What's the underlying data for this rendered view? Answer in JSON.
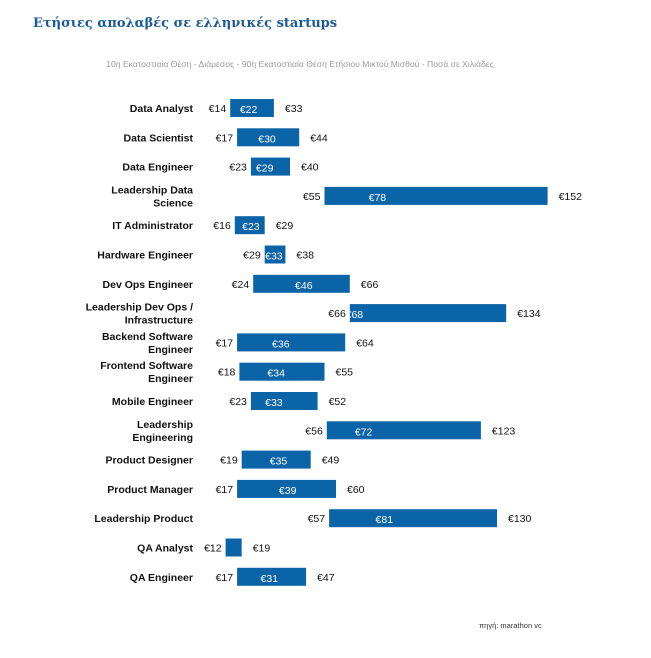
{
  "title": "Ετήσιες απολαβές σε ελληνικές startups",
  "subtitle": "10η Εκατοστιαία Θέση - Διάμεσος - 90η Εκατοστιαία Θέση Ετήσιου Μικτού Μισθού - Ποσά σε Χιλιάδες",
  "source": "πηγή: marathon vc",
  "colors": {
    "bar": "#0b63a8",
    "title": "#1a5a96"
  },
  "chart_data": {
    "type": "bar",
    "orientation": "horizontal",
    "categories": [
      [
        "Data Analyst"
      ],
      [
        "Data Scientist"
      ],
      [
        "Data Engineer"
      ],
      [
        "Leadership Data",
        "Science"
      ],
      [
        "IT Administrator"
      ],
      [
        "Hardware Engineer"
      ],
      [
        "Dev Ops Engineer"
      ],
      [
        "Leadership Dev Ops /",
        "Infrastructure"
      ],
      [
        "Backend Software",
        "Engineer"
      ],
      [
        "Frontend Software",
        "Engineer"
      ],
      [
        "Mobile Engineer"
      ],
      [
        "Leadership",
        "Engineering"
      ],
      [
        "Product Designer"
      ],
      [
        "Product Manager"
      ],
      [
        "Leadership Product"
      ],
      [
        "QA Analyst"
      ],
      [
        "QA Engineer"
      ]
    ],
    "series": [
      {
        "name": "10η Εκατοστιαία Θέση",
        "values": [
          14,
          17,
          23,
          55,
          16,
          29,
          24,
          66,
          17,
          18,
          23,
          56,
          19,
          17,
          57,
          12,
          17
        ]
      },
      {
        "name": "Διάμεσος",
        "values": [
          22,
          30,
          29,
          78,
          23,
          33,
          46,
          68,
          36,
          34,
          33,
          72,
          35,
          39,
          81,
          null,
          31
        ]
      },
      {
        "name": "90η Εκατοστιαία Θέση",
        "values": [
          33,
          44,
          40,
          152,
          29,
          38,
          66,
          134,
          64,
          55,
          52,
          123,
          49,
          60,
          130,
          19,
          47
        ]
      }
    ],
    "labels": {
      "p10": [
        "€14",
        "€17",
        "€23",
        "€55",
        "€16",
        "€29",
        "€24",
        "€66",
        "€17",
        "€18",
        "€23",
        "€56",
        "€19",
        "€17",
        "€57",
        "€12",
        "€17"
      ],
      "median": [
        "€22",
        "€30",
        "€29",
        "€78",
        "€23",
        "€33",
        "€46",
        "€68",
        "€36",
        "€34",
        "€33",
        "€72",
        "€35",
        "€39",
        "€81",
        "",
        "€31"
      ],
      "p90": [
        "€33",
        "€44",
        "€40",
        "€152",
        "€29",
        "€38",
        "€66",
        "€134",
        "€64",
        "€55",
        "€52",
        "€123",
        "€49",
        "€60",
        "€130",
        "€19",
        "€47"
      ]
    },
    "unit": "€ thousands",
    "grid": false,
    "legend": "none"
  }
}
